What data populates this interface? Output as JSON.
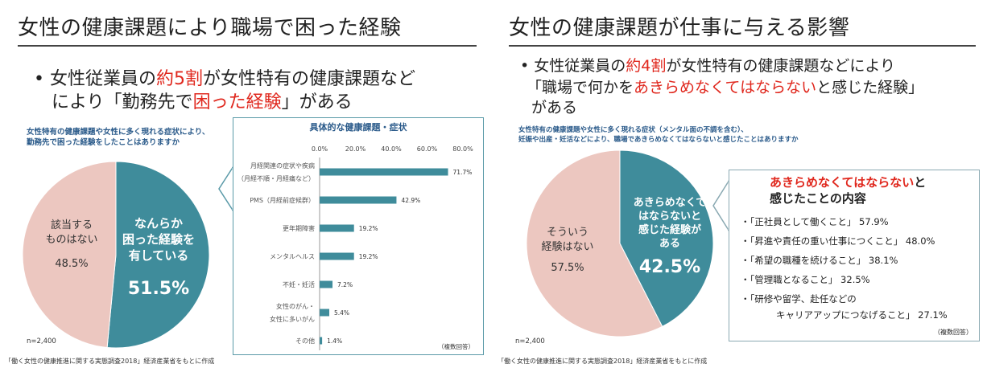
{
  "left": {
    "title": "女性の健康課題により職場で困った経験",
    "bullet_line1_pre": "• 女性従業員の",
    "bullet_line1_red": "約5割",
    "bullet_line1_post": "が女性特有の健康課題など",
    "bullet_line2_pre": "により「勤務先で",
    "bullet_line2_red": "困った経験",
    "bullet_line2_post": "」がある",
    "question_line1": "女性特有の健康課題や女性に多く現れる症状により、",
    "question_line2": "勤務先で困った経験をしたことはありますか",
    "n": "n=2,400",
    "source": "「働く女性の健康推進に関する実態調査2018」経済産業省をもとに作成",
    "pie_right_lines": [
      "なんらか",
      "困った経験を",
      "有している"
    ],
    "pie_right_value": "51.5%",
    "pie_left_lines": [
      "該当する",
      "ものはない"
    ],
    "pie_left_value": "48.5%"
  },
  "right": {
    "title": "女性の健康課題が仕事に与える影響",
    "bullet_line1_pre": "• 女性従業員の",
    "bullet_line1_red": "約4割",
    "bullet_line1_post": "が女性特有の健康課題などにより",
    "bullet_line2_pre": "「職場で何かを",
    "bullet_line2_red": "あきらめなくてはならない",
    "bullet_line2_post": "と感じた経験」",
    "bullet_line3": "がある",
    "question_line1": "女性特有の健康課題や女性に多く現れる症状（メンタル面の不調を含む）、",
    "question_line2": "妊娠や出産・妊活などにより、職場であきらめなくてはならないと感じたことはありますか",
    "n": "n=2,400",
    "source": "「働く女性の健康推進に関する実態調査2018」経済産業省をもとに作成",
    "pie_right_lines": [
      "あきらめなくて",
      "はならないと",
      "感じた経験が",
      "ある"
    ],
    "pie_right_value": "42.5%",
    "pie_left_lines": [
      "そういう",
      "経験はない"
    ],
    "pie_left_value": "57.5%",
    "content_box": {
      "heading_red": "あきらめなくてはならない",
      "heading_tail": "と",
      "heading_line2": "感じたことの内容",
      "items": [
        "・「正社員として働くこと」 57.9%",
        "・「昇進や責任の重い仕事につくこと」 48.0%",
        "・「希望の職種を続けること」 38.1%",
        "・「管理職となること」 32.5%",
        "・「研修や留学、赴任などの",
        "キャリアアップにつなげること」 27.1%"
      ],
      "note": "（複数回答）"
    }
  },
  "colors": {
    "teal": "#3f8c9b",
    "pink": "#ecc7c0",
    "red": "#e0281e",
    "bar": "#3f8c9b"
  },
  "chart_data": [
    {
      "type": "pie",
      "labels": [
        "なんらか困った経験を有している",
        "該当するものはない"
      ],
      "values": [
        51.5,
        48.5
      ],
      "colors": [
        "#3f8c9b",
        "#ecc7c0"
      ]
    },
    {
      "type": "bar",
      "orientation": "horizontal",
      "title": "具体的な健康課題・症状",
      "categories": [
        [
          "月経関連の症状や疾病",
          "（月経不順・月経痛など）"
        ],
        [
          "PMS（月経前症候群）"
        ],
        [
          "更年期障害"
        ],
        [
          "メンタルヘルス"
        ],
        [
          "不妊・妊活"
        ],
        [
          "女性のがん・",
          "女性に多いがん"
        ],
        [
          "その他"
        ]
      ],
      "values": [
        71.7,
        42.9,
        19.2,
        19.2,
        7.2,
        5.4,
        1.4
      ],
      "value_labels": [
        "71.7%",
        "42.9%",
        "19.2%",
        "19.2%",
        "7.2%",
        "5.4%",
        "1.4%"
      ],
      "ticks": [
        "0.0%",
        "20.0%",
        "40.0%",
        "60.0%",
        "80.0%"
      ],
      "xlim": [
        0,
        80
      ],
      "note": "（複数回答）"
    },
    {
      "type": "pie",
      "labels": [
        "あきらめなくてはならないと感じた経験がある",
        "そういう経験はない"
      ],
      "values": [
        42.5,
        57.5
      ],
      "colors": [
        "#3f8c9b",
        "#ecc7c0"
      ]
    }
  ]
}
